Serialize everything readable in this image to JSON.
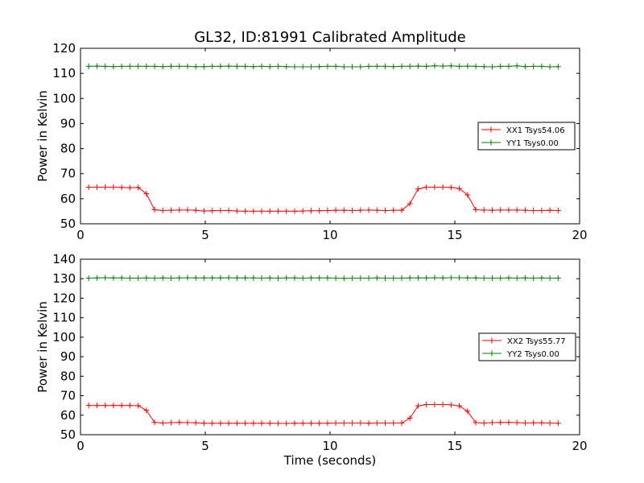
{
  "chart_data": [
    {
      "type": "line",
      "title": "GL32, ID:81991 Calibrated Amplitude",
      "xlabel": "",
      "ylabel": "Power in Kelvin",
      "xlim": [
        0,
        20
      ],
      "ylim": [
        50,
        120
      ],
      "xticks": [
        0,
        5,
        10,
        15,
        20
      ],
      "yticks": [
        50,
        60,
        70,
        80,
        90,
        100,
        110,
        120
      ],
      "legend_position": "center-right",
      "x": [
        0.33,
        0.66,
        0.99,
        1.32,
        1.65,
        1.98,
        2.31,
        2.64,
        2.97,
        3.3,
        3.63,
        3.96,
        4.29,
        4.62,
        4.95,
        5.28,
        5.61,
        5.94,
        6.27,
        6.6,
        6.93,
        7.26,
        7.59,
        7.92,
        8.25,
        8.58,
        8.91,
        9.24,
        9.57,
        9.9,
        10.23,
        10.56,
        10.89,
        11.22,
        11.55,
        11.88,
        12.21,
        12.54,
        12.87,
        13.2,
        13.53,
        13.86,
        14.19,
        14.52,
        14.85,
        15.18,
        15.51,
        15.84,
        16.17,
        16.5,
        16.83,
        17.16,
        17.49,
        17.82,
        18.15,
        18.48,
        18.81,
        19.14
      ],
      "series": [
        {
          "name": "XX1 Tsys54.06",
          "color": "#ff0000",
          "values": [
            64.6,
            64.6,
            64.6,
            64.6,
            64.5,
            64.4,
            64.5,
            62.0,
            55.6,
            55.3,
            55.4,
            55.5,
            55.5,
            55.4,
            55.1,
            55.2,
            55.3,
            55.3,
            55.1,
            55.0,
            55.0,
            55.0,
            55.0,
            55.0,
            55.0,
            55.0,
            55.1,
            55.2,
            55.2,
            55.3,
            55.4,
            55.4,
            55.3,
            55.4,
            55.5,
            55.4,
            55.3,
            55.4,
            55.4,
            58.0,
            63.9,
            64.6,
            64.6,
            64.6,
            64.5,
            64.1,
            61.5,
            55.6,
            55.5,
            55.4,
            55.5,
            55.5,
            55.5,
            55.4,
            55.3,
            55.3,
            55.4,
            55.3
          ]
        },
        {
          "name": "YY1 Tsys0.00",
          "color": "#008000",
          "values": [
            112.8,
            112.9,
            112.8,
            112.7,
            112.8,
            112.8,
            112.8,
            112.8,
            112.8,
            112.7,
            112.8,
            112.8,
            112.8,
            112.7,
            112.7,
            112.8,
            112.8,
            112.9,
            112.8,
            112.8,
            112.7,
            112.8,
            112.7,
            112.8,
            112.7,
            112.6,
            112.6,
            112.6,
            112.7,
            112.8,
            112.8,
            112.6,
            112.6,
            112.6,
            112.8,
            112.8,
            112.8,
            112.7,
            112.8,
            112.8,
            112.9,
            112.8,
            113.0,
            112.9,
            113.0,
            112.8,
            112.9,
            112.8,
            112.7,
            112.6,
            112.8,
            112.8,
            113.0,
            112.7,
            112.8,
            112.8,
            112.6,
            112.7
          ]
        }
      ]
    },
    {
      "type": "line",
      "title": "",
      "xlabel": "Time (seconds)",
      "ylabel": "Power in Kelvin",
      "xlim": [
        0,
        20
      ],
      "ylim": [
        50,
        140
      ],
      "xticks": [
        0,
        5,
        10,
        15,
        20
      ],
      "yticks": [
        50,
        60,
        70,
        80,
        90,
        100,
        110,
        120,
        130,
        140
      ],
      "legend_position": "center-right",
      "x": [
        0.33,
        0.66,
        0.99,
        1.32,
        1.65,
        1.98,
        2.31,
        2.64,
        2.97,
        3.3,
        3.63,
        3.96,
        4.29,
        4.62,
        4.95,
        5.28,
        5.61,
        5.94,
        6.27,
        6.6,
        6.93,
        7.26,
        7.59,
        7.92,
        8.25,
        8.58,
        8.91,
        9.24,
        9.57,
        9.9,
        10.23,
        10.56,
        10.89,
        11.22,
        11.55,
        11.88,
        12.21,
        12.54,
        12.87,
        13.2,
        13.53,
        13.86,
        14.19,
        14.52,
        14.85,
        15.18,
        15.51,
        15.84,
        16.17,
        16.5,
        16.83,
        17.16,
        17.49,
        17.82,
        18.15,
        18.48,
        18.81,
        19.14
      ],
      "series": [
        {
          "name": "XX2 Tsys55.77",
          "color": "#ff0000",
          "values": [
            65.0,
            65.0,
            65.0,
            65.0,
            65.0,
            65.0,
            64.9,
            62.5,
            56.3,
            56.0,
            56.2,
            56.3,
            56.2,
            56.1,
            55.9,
            55.9,
            55.9,
            55.9,
            55.9,
            55.9,
            55.9,
            55.9,
            55.9,
            55.8,
            55.8,
            55.9,
            55.9,
            55.9,
            55.9,
            55.9,
            56.0,
            56.0,
            56.0,
            56.0,
            55.9,
            56.0,
            56.0,
            56.0,
            56.0,
            58.5,
            64.8,
            65.5,
            65.5,
            65.5,
            65.3,
            64.8,
            62.0,
            56.2,
            56.0,
            56.2,
            56.3,
            56.3,
            56.2,
            56.0,
            56.1,
            56.1,
            56.0,
            55.9
          ]
        },
        {
          "name": "YY2 Tsys0.00",
          "color": "#008000",
          "values": [
            130.3,
            130.4,
            130.5,
            130.4,
            130.4,
            130.3,
            130.3,
            130.4,
            130.3,
            130.4,
            130.3,
            130.4,
            130.5,
            130.4,
            130.4,
            130.4,
            130.4,
            130.5,
            130.4,
            130.4,
            130.4,
            130.3,
            130.4,
            130.3,
            130.4,
            130.4,
            130.3,
            130.4,
            130.4,
            130.4,
            130.3,
            130.2,
            130.3,
            130.3,
            130.3,
            130.4,
            130.3,
            130.3,
            130.3,
            130.4,
            130.4,
            130.4,
            130.5,
            130.4,
            130.5,
            130.5,
            130.4,
            130.4,
            130.3,
            130.3,
            130.3,
            130.4,
            130.3,
            130.4,
            130.3,
            130.4,
            130.3,
            130.3
          ]
        }
      ]
    }
  ]
}
